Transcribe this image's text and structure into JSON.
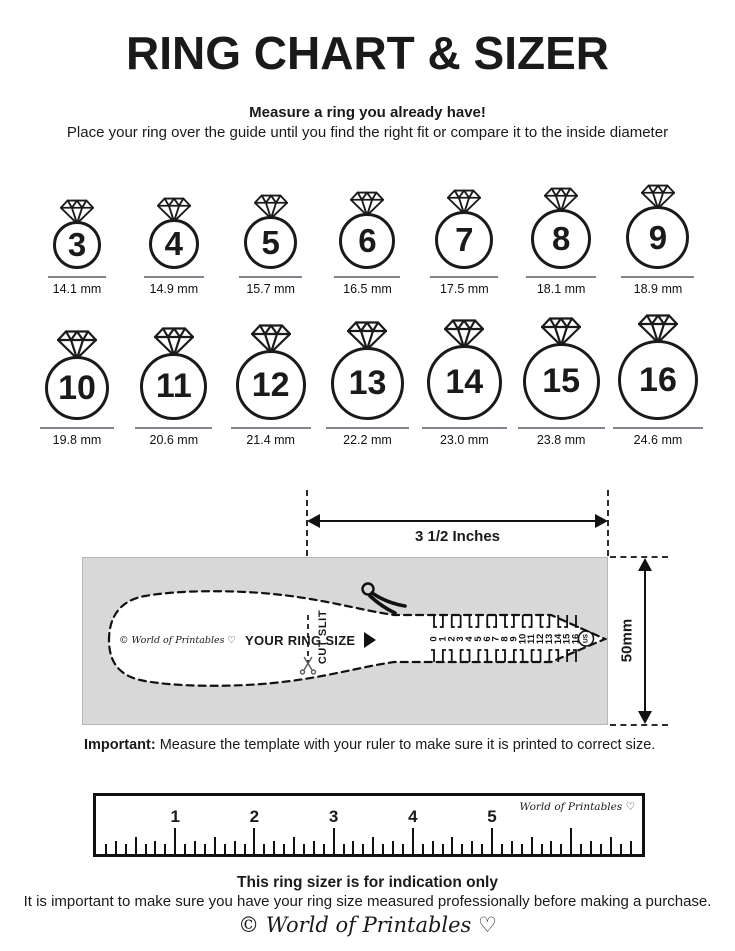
{
  "title": "RING CHART & SIZER",
  "intro": {
    "headline": "Measure a ring you already have!",
    "subtext": "Place your ring over the guide until you find the right fit or compare it to the inside diameter"
  },
  "ring_chart": {
    "rows": [
      {
        "rings": [
          {
            "size": "3",
            "diameter": "14.1 mm"
          },
          {
            "size": "4",
            "diameter": "14.9 mm"
          },
          {
            "size": "5",
            "diameter": "15.7 mm"
          },
          {
            "size": "6",
            "diameter": "16.5 mm"
          },
          {
            "size": "7",
            "diameter": "17.5 mm"
          },
          {
            "size": "8",
            "diameter": "18.1 mm"
          },
          {
            "size": "9",
            "diameter": "18.9 mm"
          }
        ]
      },
      {
        "rings": [
          {
            "size": "10",
            "diameter": "19.8 mm"
          },
          {
            "size": "11",
            "diameter": "20.6 mm"
          },
          {
            "size": "12",
            "diameter": "21.4 mm"
          },
          {
            "size": "13",
            "diameter": "22.2 mm"
          },
          {
            "size": "14",
            "diameter": "23.0 mm"
          },
          {
            "size": "15",
            "diameter": "23.8 mm"
          },
          {
            "size": "16",
            "diameter": "24.6 mm"
          }
        ]
      }
    ]
  },
  "sizer": {
    "width_label": "3 1/2 Inches",
    "height_label": "50mm",
    "brand": "© World of Printables ♡",
    "your_ring_size_label": "YOUR RING SIZE",
    "cut_slit_label": "CUT SLIT",
    "scale_numbers": [
      "0",
      "1",
      "2",
      "3",
      "4",
      "5",
      "6",
      "7",
      "8",
      "9",
      "10",
      "11",
      "12",
      "13",
      "14",
      "15",
      "16"
    ],
    "unit_label": "US"
  },
  "important_note": {
    "prefix": "Important:",
    "text": " Measure the template with your ruler to make sure it is printed to correct size."
  },
  "ruler": {
    "numbers": [
      "1",
      "2",
      "3",
      "4",
      "5"
    ],
    "brand": "World of Printables ♡"
  },
  "footer": {
    "bold_line": "This ring sizer is for indication only",
    "line": "It is important to make sure you have your ring size measured professionally before making a purchase.",
    "brand": "© World of Printables ♡"
  },
  "colors": {
    "ink": "#1a1a1a",
    "panel_gray": "#d8d8d8"
  }
}
